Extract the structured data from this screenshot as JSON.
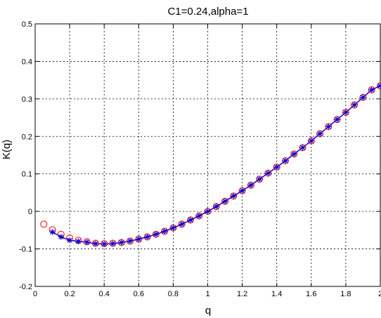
{
  "chart_data": {
    "type": "line",
    "title": "C1=0.24,alpha=1",
    "xlabel": "q",
    "ylabel": "K(q)",
    "xlim": [
      0,
      2
    ],
    "ylim": [
      -0.2,
      0.5
    ],
    "xticks": [
      "0",
      "0.2",
      "0.4",
      "0.6",
      "0.8",
      "1",
      "1.2",
      "1.4",
      "1.6",
      "1.8",
      "2"
    ],
    "yticks": [
      "-0.2",
      "-0.1",
      "0",
      "0.1",
      "0.2",
      "0.3",
      "0.4",
      "0.5"
    ],
    "grid": true,
    "legend": "none",
    "series": [
      {
        "marker": "circle",
        "color": "#ff0000",
        "x": [
          0.05,
          0.1,
          0.15,
          0.2,
          0.25,
          0.3,
          0.35,
          0.4,
          0.45,
          0.5,
          0.55,
          0.6,
          0.65,
          0.7,
          0.75,
          0.8,
          0.85,
          0.9,
          0.95,
          1.0,
          1.05,
          1.1,
          1.15,
          1.2,
          1.25,
          1.3,
          1.35,
          1.4,
          1.45,
          1.5,
          1.55,
          1.6,
          1.65,
          1.7,
          1.75,
          1.8,
          1.85,
          1.9,
          1.95,
          2.0
        ],
        "y": [
          -0.034,
          -0.049,
          -0.061,
          -0.071,
          -0.077,
          -0.081,
          -0.085,
          -0.086,
          -0.085,
          -0.083,
          -0.079,
          -0.074,
          -0.068,
          -0.061,
          -0.053,
          -0.044,
          -0.034,
          -0.023,
          -0.012,
          0.0,
          0.013,
          0.027,
          0.041,
          0.055,
          0.07,
          0.086,
          0.102,
          0.118,
          0.135,
          0.153,
          0.17,
          0.188,
          0.207,
          0.226,
          0.245,
          0.264,
          0.284,
          0.304,
          0.324,
          0.335
        ]
      },
      {
        "marker": "star",
        "color": "#0000cc",
        "x": [
          0.1,
          0.15,
          0.2,
          0.25,
          0.3,
          0.35,
          0.4,
          0.45,
          0.5,
          0.55,
          0.6,
          0.65,
          0.7,
          0.75,
          0.8,
          0.85,
          0.9,
          0.95,
          1.0,
          1.05,
          1.1,
          1.15,
          1.2,
          1.25,
          1.3,
          1.35,
          1.4,
          1.45,
          1.5,
          1.55,
          1.6,
          1.65,
          1.7,
          1.75,
          1.8,
          1.85,
          1.9,
          1.95,
          2.0
        ],
        "y": [
          -0.055,
          -0.068,
          -0.077,
          -0.08,
          -0.082,
          -0.086,
          -0.087,
          -0.086,
          -0.083,
          -0.079,
          -0.074,
          -0.068,
          -0.061,
          -0.053,
          -0.044,
          -0.034,
          -0.023,
          -0.012,
          0.0,
          0.013,
          0.027,
          0.041,
          0.055,
          0.07,
          0.086,
          0.102,
          0.118,
          0.135,
          0.153,
          0.17,
          0.188,
          0.207,
          0.226,
          0.245,
          0.264,
          0.284,
          0.304,
          0.324,
          0.335
        ]
      }
    ],
    "line": {
      "color": "#0000ff",
      "x": [
        0.1,
        0.15,
        0.2,
        0.25,
        0.3,
        0.35,
        0.4,
        0.45,
        0.5,
        0.55,
        0.6,
        0.65,
        0.7,
        0.75,
        0.8,
        0.85,
        0.9,
        0.95,
        1.0,
        1.05,
        1.1,
        1.15,
        1.2,
        1.25,
        1.3,
        1.35,
        1.4,
        1.45,
        1.5,
        1.55,
        1.6,
        1.65,
        1.7,
        1.75,
        1.8,
        1.85,
        1.9,
        1.95,
        2.0
      ],
      "y": [
        -0.055,
        -0.068,
        -0.077,
        -0.08,
        -0.082,
        -0.086,
        -0.087,
        -0.086,
        -0.083,
        -0.079,
        -0.074,
        -0.068,
        -0.061,
        -0.053,
        -0.044,
        -0.034,
        -0.023,
        -0.012,
        0.0,
        0.013,
        0.027,
        0.041,
        0.055,
        0.07,
        0.086,
        0.102,
        0.118,
        0.135,
        0.153,
        0.17,
        0.188,
        0.207,
        0.226,
        0.245,
        0.264,
        0.284,
        0.304,
        0.324,
        0.335
      ]
    }
  }
}
